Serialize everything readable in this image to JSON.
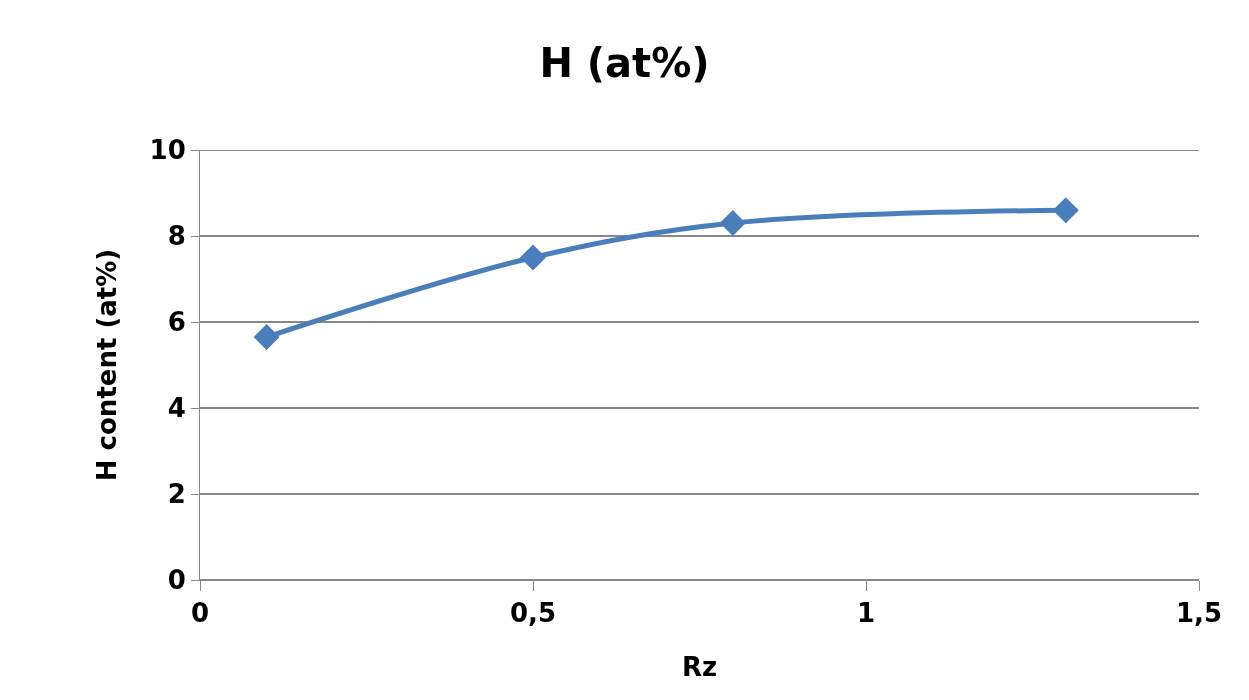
{
  "chart_data": {
    "type": "line",
    "title": "H (at%)",
    "xlabel": "Rz",
    "ylabel": "H content (at%)",
    "x": [
      0.1,
      0.5,
      0.8,
      1.3
    ],
    "series": [
      {
        "color": "#4a7ebb",
        "values": [
          5.65,
          7.5,
          8.3,
          8.6
        ]
      }
    ],
    "xlim": [
      0,
      1.5
    ],
    "xticks": [
      0,
      {
        "value": 0.5,
        "label": "0,5"
      },
      1,
      {
        "value": 1.5,
        "label": "1,5"
      }
    ],
    "ylim": [
      0,
      10
    ],
    "yticks": [
      0,
      2,
      4,
      6,
      8,
      10
    ],
    "grid": "y",
    "marker": "diamond",
    "line_style": "solid"
  }
}
